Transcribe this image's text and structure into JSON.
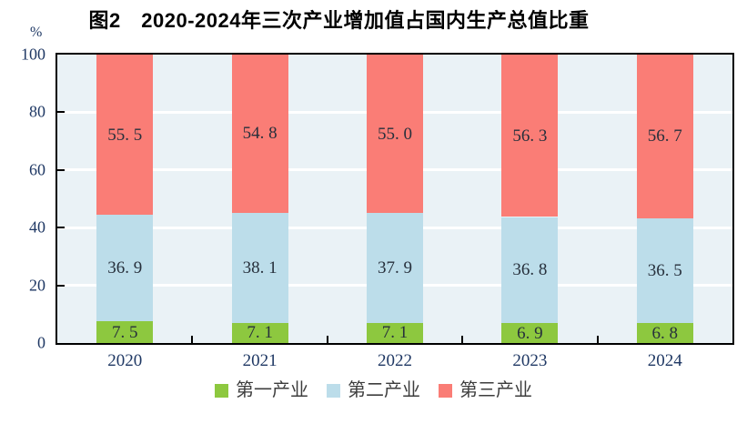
{
  "title": "图2　2020-2024年三次产业增加值占国内生产总值比重",
  "y_axis": {
    "unit": "%",
    "ticks": [
      0,
      20,
      40,
      60,
      80,
      100
    ],
    "gridlines": [
      20,
      40,
      60,
      80
    ]
  },
  "colors": {
    "plot_background": "#eaf2f6",
    "gridline": "#ffffff",
    "axis_line": "#000000",
    "axis_label_text": "#1f3864",
    "segment_label_text": "#27303c",
    "primary_industry": "#8dc83f",
    "secondary_industry": "#bcddea",
    "tertiary_industry": "#fa7d76"
  },
  "chart_data": {
    "type": "bar",
    "stacked": true,
    "title": "图2　2020-2024年三次产业增加值占国内生产总值比重",
    "categories": [
      "2020",
      "2021",
      "2022",
      "2023",
      "2024"
    ],
    "series": [
      {
        "name": "第一产业",
        "color": "#8dc83f",
        "values": [
          7.5,
          7.1,
          7.1,
          6.9,
          6.8
        ],
        "labels": [
          "7. 5",
          "7. 1",
          "7. 1",
          "6. 9",
          "6. 8"
        ]
      },
      {
        "name": "第二产业",
        "color": "#bcddea",
        "values": [
          36.9,
          38.1,
          37.9,
          36.8,
          36.5
        ],
        "labels": [
          "36. 9",
          "38. 1",
          "37. 9",
          "36. 8",
          "36. 5"
        ]
      },
      {
        "name": "第三产业",
        "color": "#fa7d76",
        "values": [
          55.5,
          54.8,
          55.0,
          56.3,
          56.7
        ],
        "labels": [
          "55. 5",
          "54. 8",
          "55. 0",
          "56. 3",
          "56. 7"
        ]
      }
    ],
    "ylabel": "%",
    "ylim": [
      0,
      100
    ],
    "grid": true,
    "legend_position": "bottom"
  }
}
